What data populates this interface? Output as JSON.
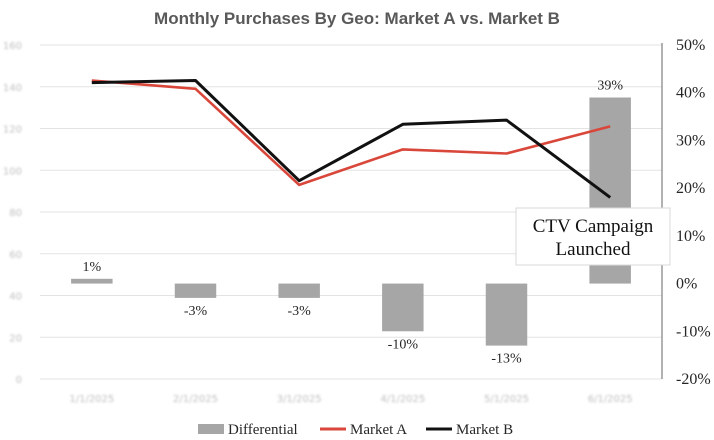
{
  "chart_data": {
    "type": "bar",
    "title": "Monthly Purchases By Geo: Market A vs. Market B",
    "categories": [
      "1/1/2025",
      "2/1/2025",
      "3/1/2025",
      "4/1/2025",
      "5/1/2025",
      "6/1/2025"
    ],
    "left_axis": {
      "ticks": [
        0,
        20,
        40,
        60,
        80,
        100,
        120,
        140,
        160
      ],
      "ylim": [
        0,
        160
      ]
    },
    "right_axis": {
      "ticks": [
        -20,
        -10,
        0,
        10,
        20,
        30,
        40,
        50
      ],
      "tick_labels": [
        "-20%",
        "-10%",
        "0%",
        "10%",
        "20%",
        "30%",
        "40%",
        "50%"
      ],
      "ylim": [
        -20,
        50
      ]
    },
    "series": [
      {
        "name": "Differential",
        "type": "bar",
        "axis": "right",
        "color": "#a6a6a6",
        "values": [
          1,
          -3,
          -3,
          -10,
          -13,
          39
        ],
        "labels": [
          "1%",
          "-3%",
          "-3%",
          "-10%",
          "-13%",
          "39%"
        ]
      },
      {
        "name": "Market A",
        "type": "line",
        "axis": "left",
        "color": "#d9473b",
        "values": [
          143,
          139,
          93,
          110,
          108,
          121
        ]
      },
      {
        "name": "Market B",
        "type": "line",
        "axis": "left",
        "color": "#111111",
        "values": [
          142,
          143,
          95,
          122,
          124,
          87
        ]
      }
    ],
    "annotation": {
      "lines": [
        "CTV Campaign",
        "Launched"
      ],
      "category": "6/1/2025"
    },
    "legend": {
      "position": "bottom"
    },
    "grid": true
  }
}
